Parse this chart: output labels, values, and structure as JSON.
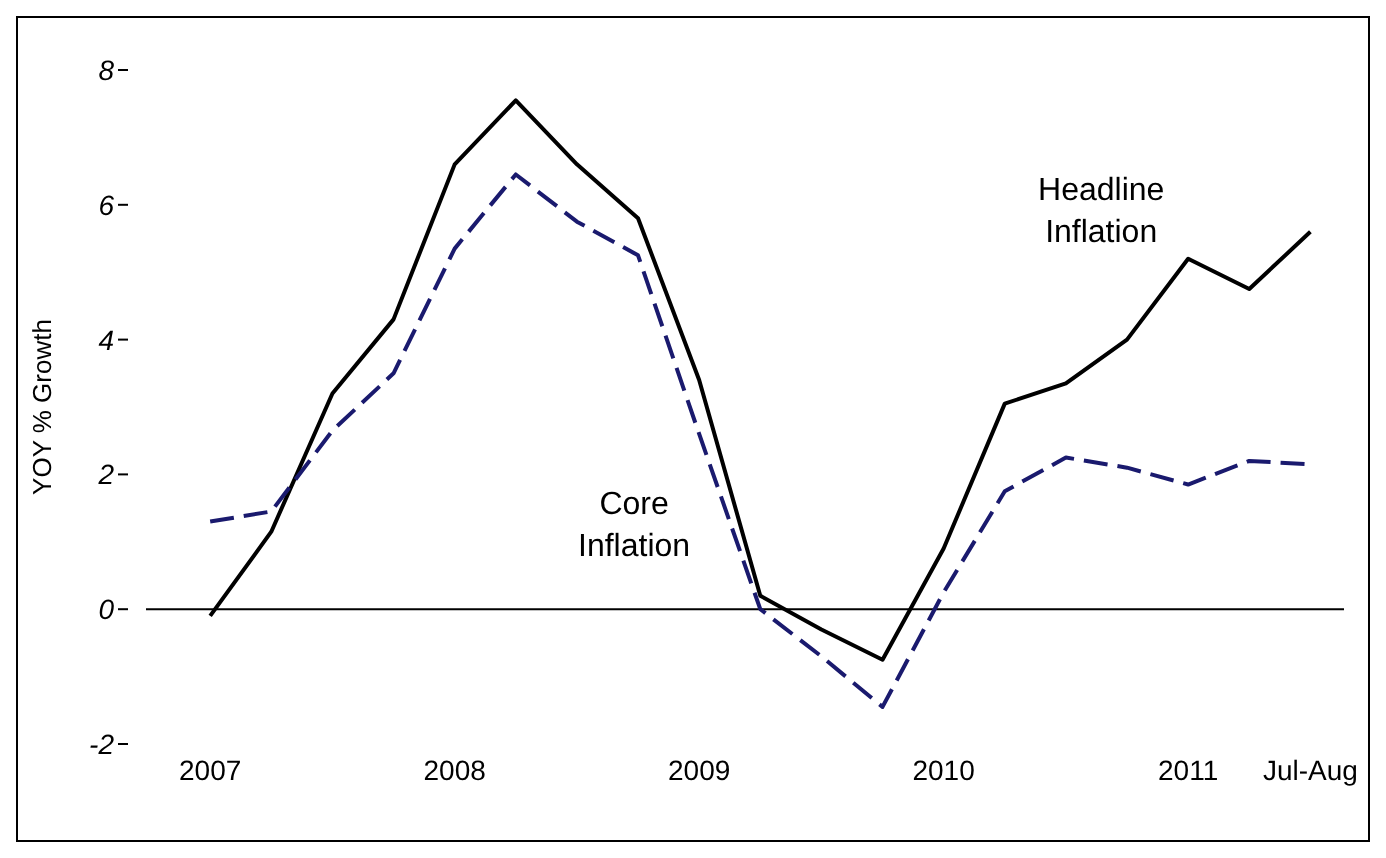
{
  "chart_data": {
    "type": "line",
    "ylabel": "YOY % Growth",
    "categories": [
      "2007",
      null,
      null,
      null,
      "2008",
      null,
      null,
      null,
      "2009",
      null,
      null,
      null,
      "2010",
      null,
      null,
      null,
      "2011",
      null,
      "Jul-Aug"
    ],
    "series": [
      {
        "color": "#000000",
        "line_style": "solid",
        "values": [
          -0.1,
          1.15,
          3.2,
          4.3,
          6.6,
          7.55,
          6.6,
          5.8,
          3.4,
          0.2,
          -0.3,
          -0.75,
          0.9,
          3.05,
          3.35,
          4.0,
          5.2,
          4.75,
          5.6
        ]
      },
      {
        "color": "#1a1a6e",
        "line_style": "dashed",
        "values": [
          1.3,
          1.45,
          2.65,
          3.5,
          5.35,
          6.45,
          5.75,
          5.25,
          2.6,
          0.0,
          -0.7,
          -1.45,
          0.25,
          1.75,
          2.25,
          2.1,
          1.85,
          2.2,
          2.15
        ]
      }
    ],
    "ylim": [
      -2,
      8
    ],
    "yticks": [
      -2,
      0,
      2,
      4,
      6,
      8
    ],
    "ref_lines": [
      {
        "axis": "y",
        "value": 0,
        "color": "#000000"
      }
    ],
    "annotations": [
      "Headline Inflation",
      "Core Inflation"
    ],
    "grid": false,
    "legend": false,
    "marker": "none"
  }
}
